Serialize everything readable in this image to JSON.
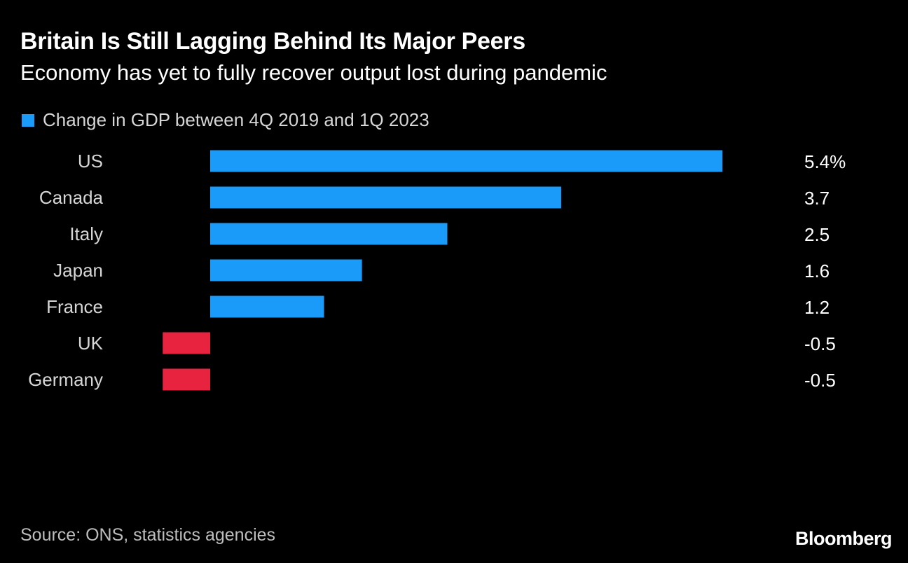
{
  "chart_data": {
    "type": "bar",
    "orientation": "horizontal",
    "title": "Britain Is Still Lagging Behind Its Major Peers",
    "subtitle": "Economy has yet to fully recover output lost during pandemic",
    "series": [
      {
        "name": "Change in GDP between 4Q 2019 and 1Q 2023",
        "values": [
          5.4,
          3.7,
          2.5,
          1.6,
          1.2,
          -0.5,
          -0.5
        ]
      }
    ],
    "categories": [
      "US",
      "Canada",
      "Italy",
      "Japan",
      "France",
      "UK",
      "Germany"
    ],
    "value_labels": [
      "5.4%",
      "3.7",
      "2.5",
      "1.6",
      "1.2",
      "-0.5",
      "-0.5"
    ],
    "xlim": [
      -0.5,
      5.4
    ],
    "grid": false,
    "legend_position": "top-left",
    "colors": {
      "positive": "#1a9bfa",
      "negative": "#e8233f"
    },
    "source": "Source: ONS, statistics agencies"
  },
  "brand": {
    "name": "Bloomberg"
  }
}
